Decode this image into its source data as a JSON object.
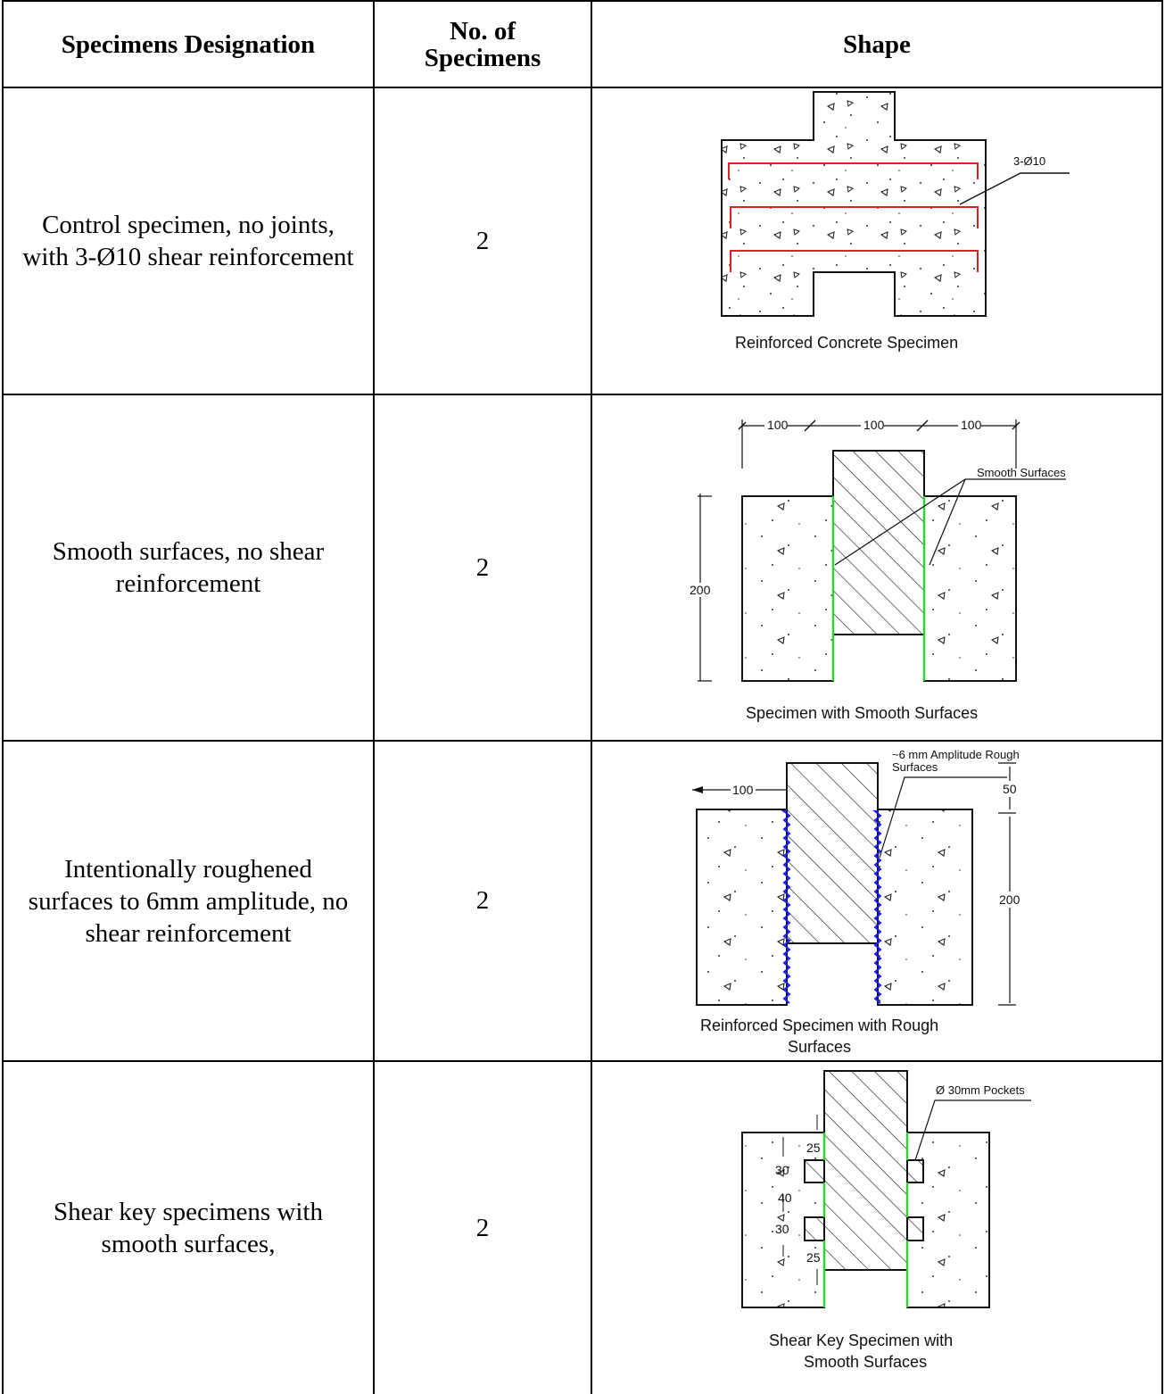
{
  "table": {
    "headers": {
      "designation": "Specimens Designation",
      "count": "No. of Specimens",
      "shape": "Shape"
    },
    "rows": [
      {
        "designation": "Control specimen, no joints, with 3-Ø10 shear reinforcement",
        "count": "2",
        "figure": {
          "caption": "Reinforced Concrete Specimen",
          "label": "3-Ø10"
        }
      },
      {
        "designation": "Smooth surfaces, no shear reinforcement",
        "count": "2",
        "figure": {
          "caption": "Specimen with Smooth Surfaces",
          "label": "Smooth Surfaces",
          "dims": [
            "100",
            "100",
            "100",
            "200"
          ]
        }
      },
      {
        "designation": "Intentionally roughened surfaces to 6mm amplitude, no shear reinforcement",
        "count": "2",
        "figure": {
          "caption_line1": "Reinforced Specimen with Rough",
          "caption_line2": "Surfaces",
          "label_line1": "~6 mm Amplitude Rough",
          "label_line2": "Surfaces",
          "dims": [
            "100",
            "50",
            "200"
          ]
        }
      },
      {
        "designation": "Shear key specimens with smooth surfaces,",
        "count": "2",
        "figure": {
          "caption_line1": "Shear Key Specimen with",
          "caption_line2": "Smooth Surfaces",
          "label": "Ø 30mm Pockets",
          "dims": [
            "25",
            "30",
            "40",
            "30",
            "25"
          ]
        }
      }
    ]
  },
  "colors": {
    "rebar": "#e02020",
    "smooth_joint": "#2bd62b",
    "rough_joint": "#1a1aff"
  }
}
